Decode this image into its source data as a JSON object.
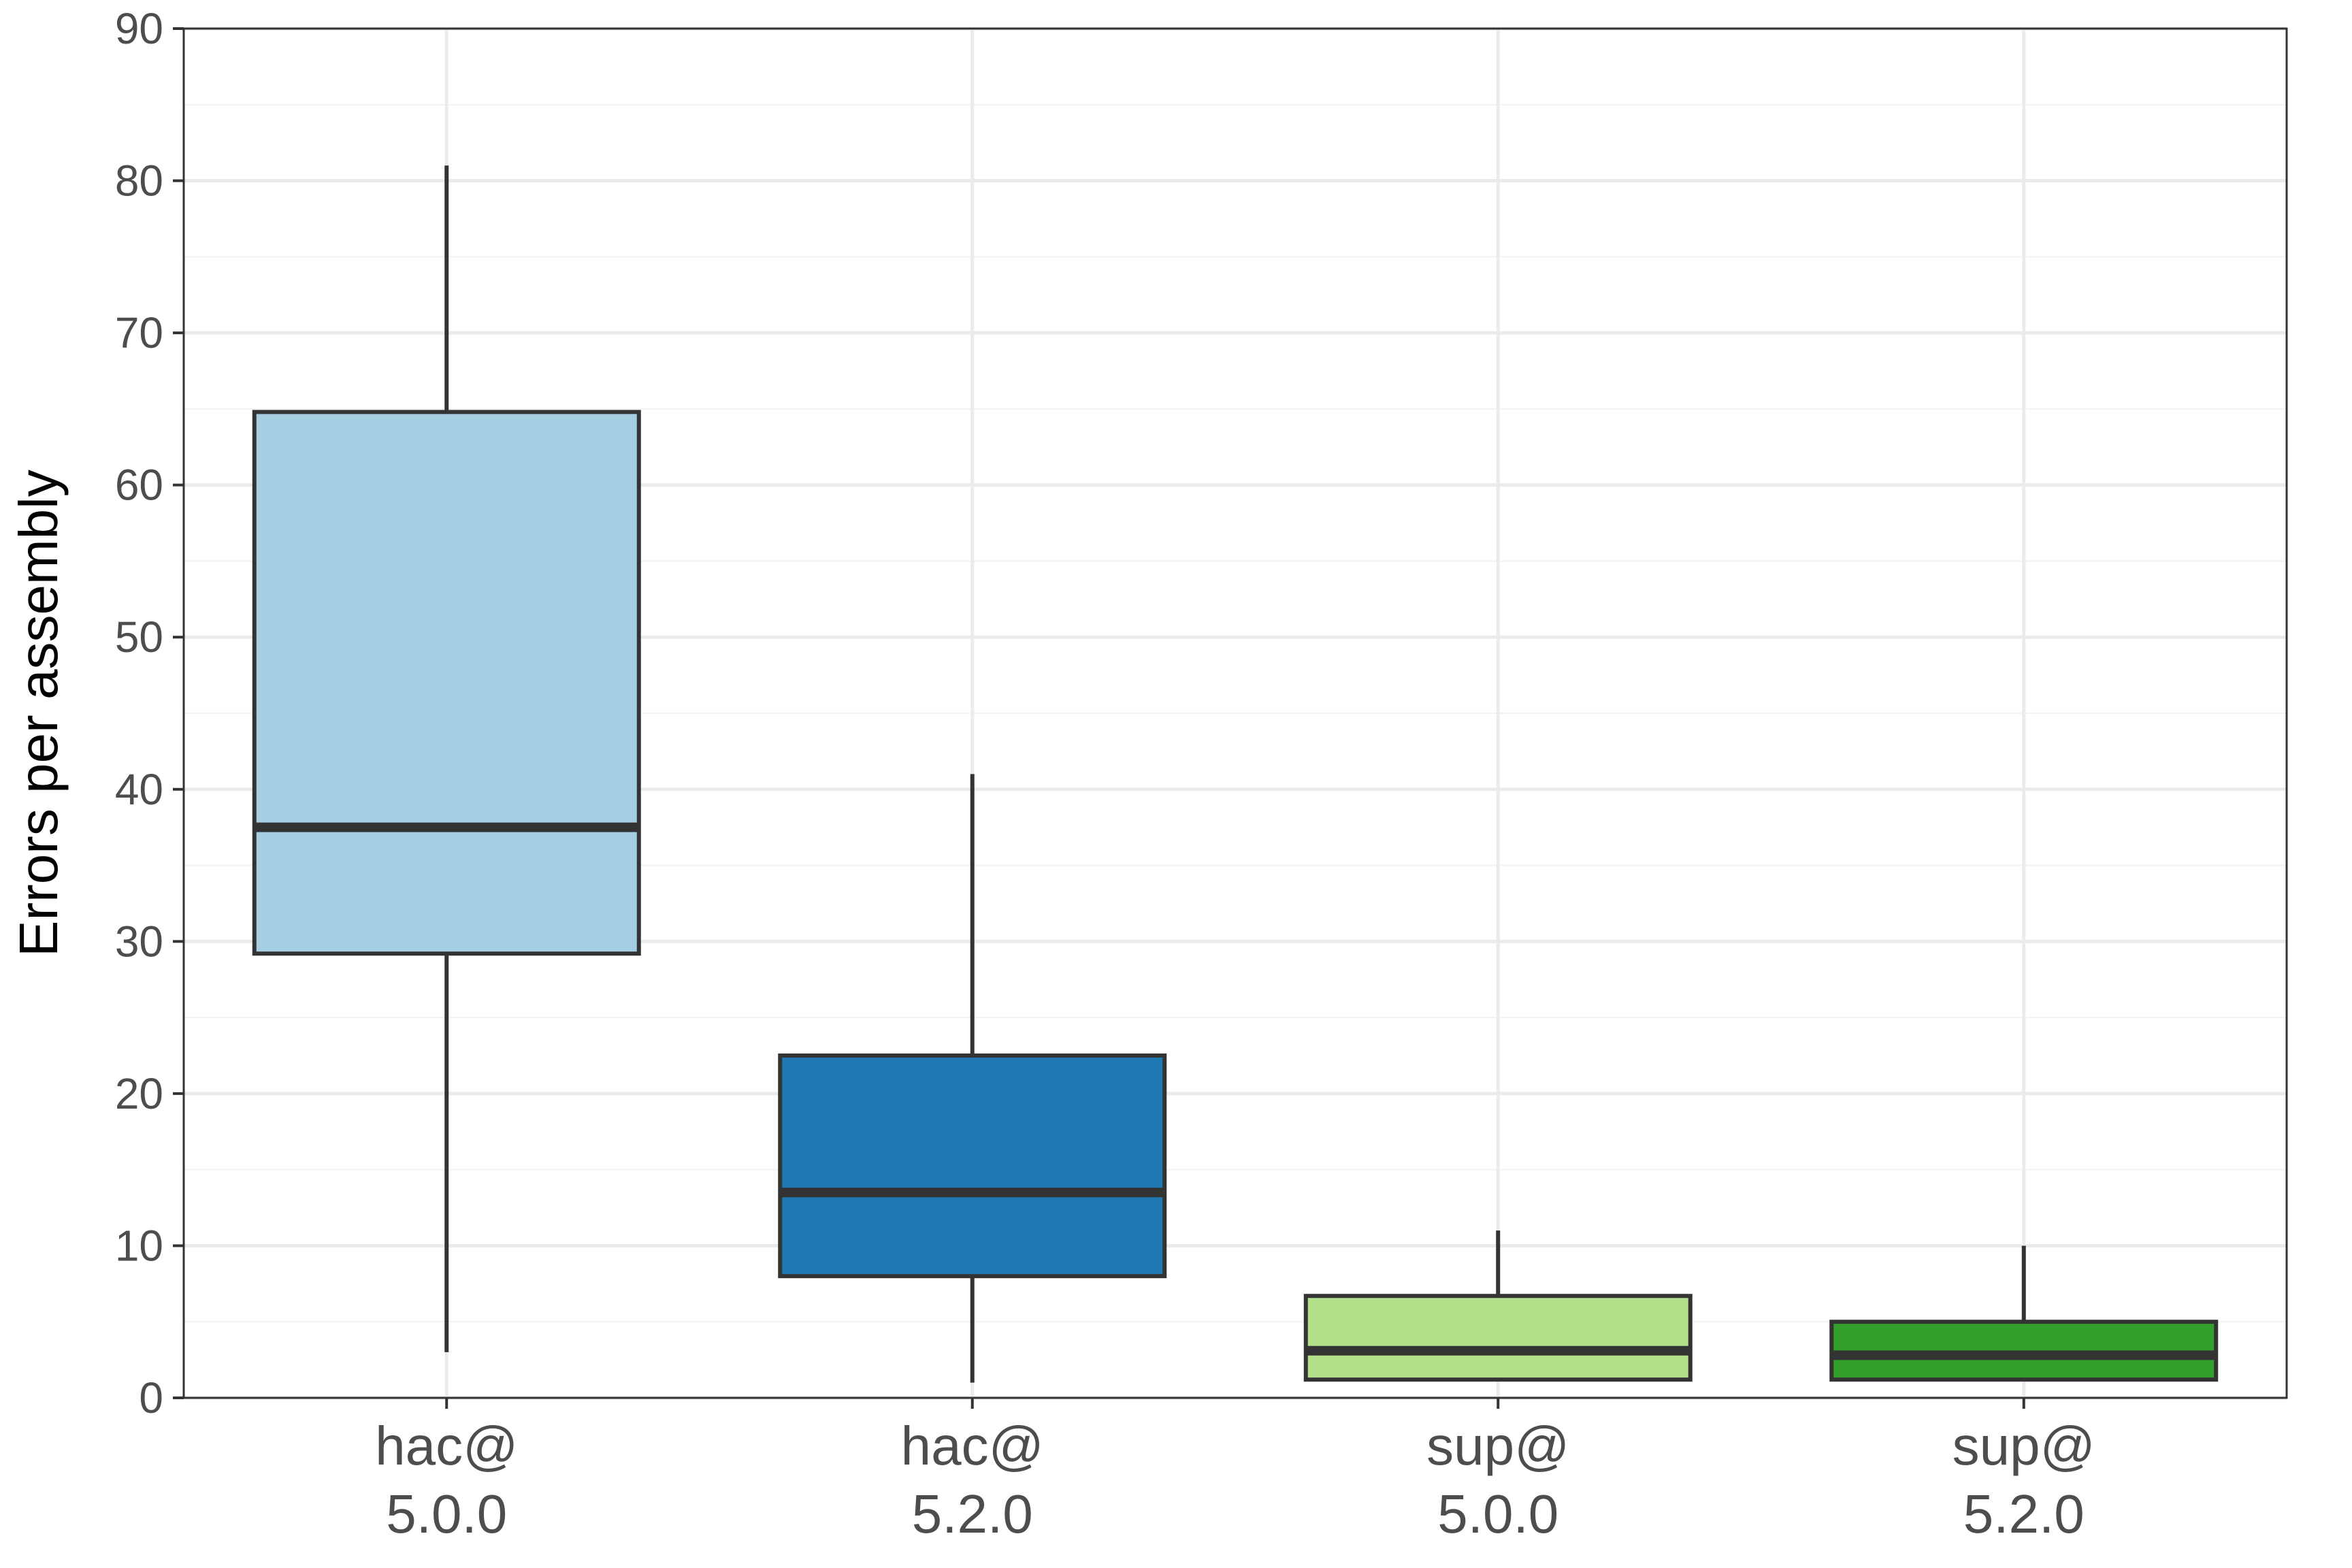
{
  "chart_data": {
    "type": "box",
    "title": "",
    "xlabel": "",
    "ylabel": "Errors per assembly",
    "ylim": [
      0,
      90
    ],
    "yticks": [
      0,
      10,
      20,
      30,
      40,
      50,
      60,
      70,
      80,
      90
    ],
    "grid": true,
    "legend": "none",
    "categories": [
      {
        "line1": "hac@",
        "line2": "5.0.0"
      },
      {
        "line1": "hac@",
        "line2": "5.2.0"
      },
      {
        "line1": "sup@",
        "line2": "5.0.0"
      },
      {
        "line1": "sup@",
        "line2": "5.2.0"
      }
    ],
    "boxes": [
      {
        "whisker_low": 3,
        "q1": 29.2,
        "median": 37.5,
        "q3": 64.8,
        "whisker_high": 81,
        "color": "#a6cee3"
      },
      {
        "whisker_low": 1,
        "q1": 8,
        "median": 13.5,
        "q3": 22.5,
        "whisker_high": 41,
        "color": "#1f78b4"
      },
      {
        "whisker_low": 1.2,
        "q1": 1.2,
        "median": 3.1,
        "q3": 6.7,
        "whisker_high": 11,
        "color": "#b2df8a"
      },
      {
        "whisker_low": 1.2,
        "q1": 1.2,
        "median": 2.8,
        "q3": 5,
        "whisker_high": 10,
        "color": "#33a02c"
      }
    ]
  }
}
